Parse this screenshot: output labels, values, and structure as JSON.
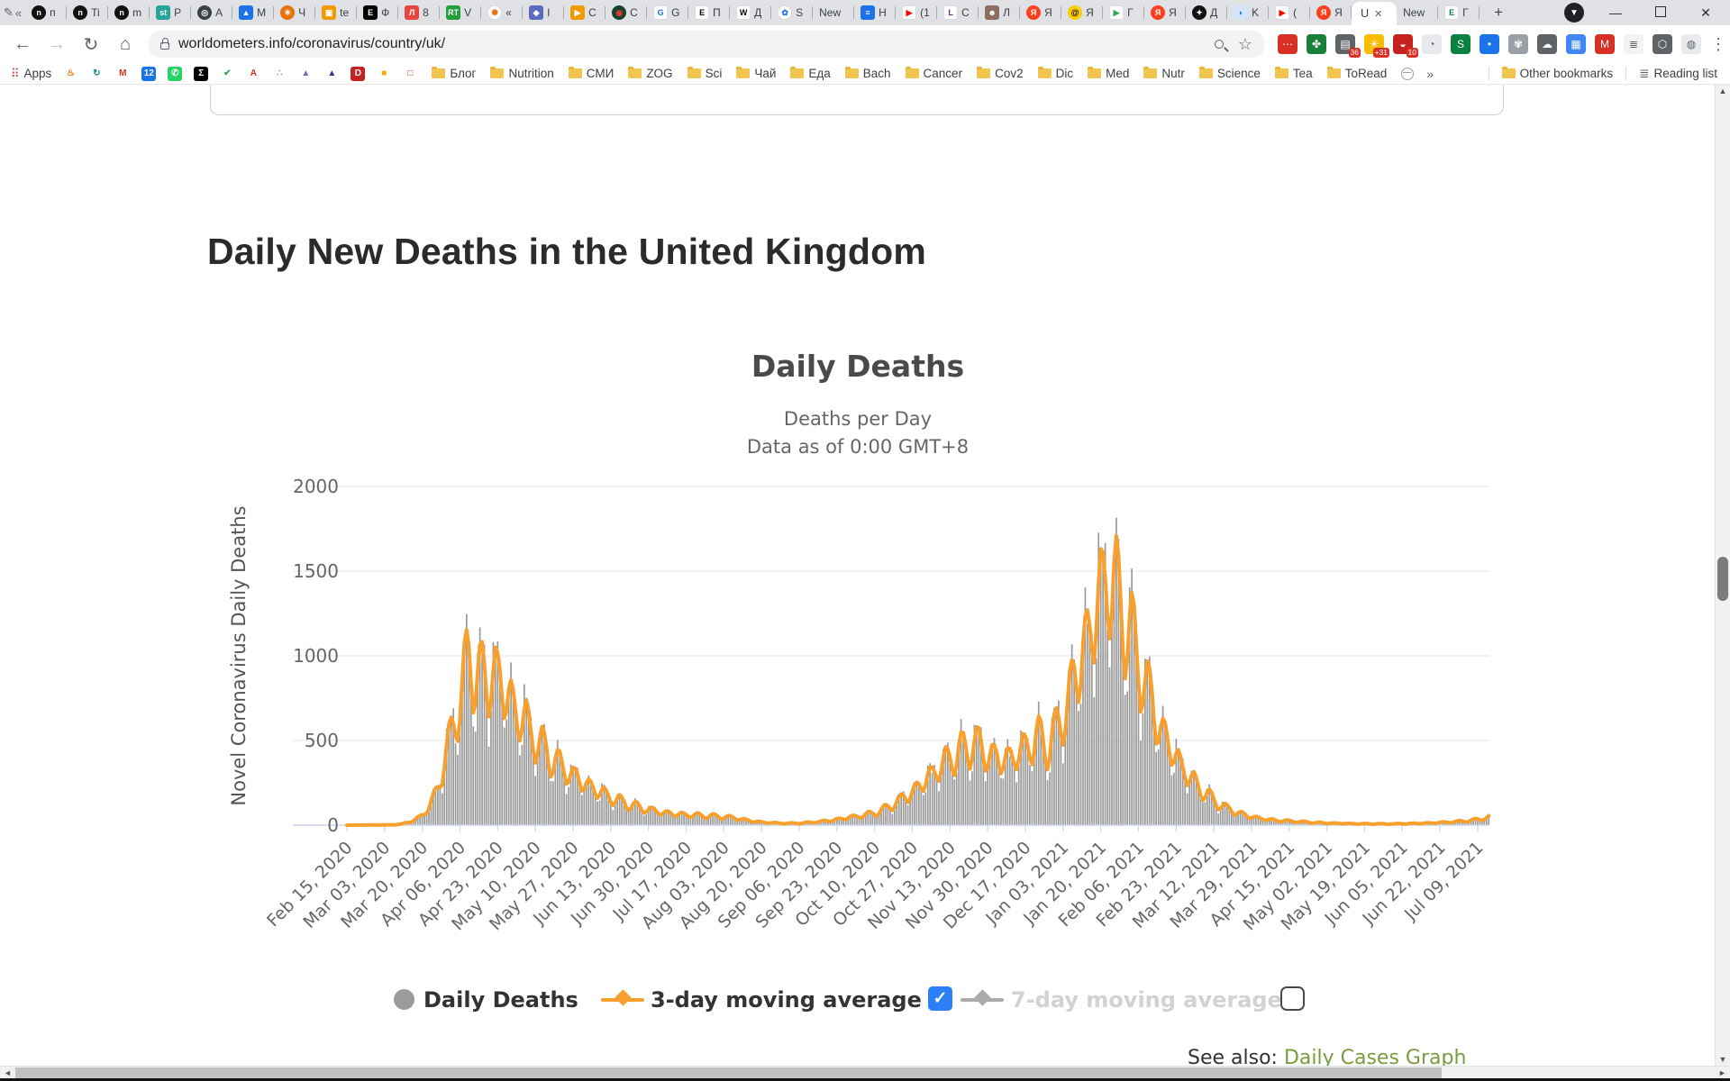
{
  "browser_chrome": {
    "pinned_prefix": {
      "pen_icon": "✎",
      "chevron": "«"
    },
    "tabs": [
      {
        "fav": [
          "c",
          "#111111",
          "#ffffff",
          "n"
        ],
        "letter": "п"
      },
      {
        "fav": [
          "c",
          "#111111",
          "#ffffff",
          "n"
        ],
        "letter": "Ti"
      },
      {
        "fav": [
          "c",
          "#111111",
          "#ffffff",
          "n"
        ],
        "letter": "m"
      },
      {
        "fav": [
          "s",
          "#26a69a",
          "#ffffff",
          "st"
        ],
        "letter": "P"
      },
      {
        "fav": [
          "c",
          "#3c4043",
          "#ffffff",
          "◎"
        ],
        "letter": "A"
      },
      {
        "fav": [
          "s",
          "#1a73e8",
          "#ffffff",
          "▲"
        ],
        "letter": "M"
      },
      {
        "fav": [
          "c",
          "#e8710a",
          "#ffffff",
          "✳"
        ],
        "letter": "Ч"
      },
      {
        "fav": [
          "s",
          "#f29900",
          "#ffffff",
          "▣"
        ],
        "letter": "te"
      },
      {
        "fav": [
          "s",
          "#000000",
          "#ffffff",
          "E"
        ],
        "letter": "Ф"
      },
      {
        "fav": [
          "s",
          "#e8453c",
          "#ffffff",
          "Л"
        ],
        "letter": "8"
      },
      {
        "fav": [
          "s",
          "#21a038",
          "#ffffff",
          "RT"
        ],
        "letter": "V"
      },
      {
        "fav": [
          "c",
          "#ffffff",
          "#e8710a",
          "✺"
        ],
        "letter": "«"
      },
      {
        "fav": [
          "s",
          "#5b6abf",
          "#ffffff",
          "◆"
        ],
        "letter": "I"
      },
      {
        "fav": [
          "s",
          "#f29900",
          "#ffffff",
          "▶"
        ],
        "letter": "C"
      },
      {
        "fav": [
          "c",
          "#14412e",
          "#e53935",
          "◉"
        ],
        "letter": "C"
      },
      {
        "fav": [
          "s",
          "#ffffff",
          "#1a73e8",
          "G"
        ],
        "letter": "G"
      },
      {
        "fav": [
          "s",
          "#ffffff",
          "#000000",
          "E"
        ],
        "letter": "П"
      },
      {
        "fav": [
          "s",
          "#ffffff",
          "#000000",
          "W"
        ],
        "letter": "Д"
      },
      {
        "fav": [
          "c",
          "#ffffff",
          "#1a73e8",
          "✿"
        ],
        "letter": "S"
      },
      {
        "fav": null,
        "letter": "New"
      },
      {
        "fav": [
          "s",
          "#1a73e8",
          "#ffffff",
          "≡"
        ],
        "letter": "H"
      },
      {
        "fav": [
          "s",
          "#ffffff",
          "#ff0000",
          "▶"
        ],
        "letter": "(1"
      },
      {
        "fav": [
          "s",
          "#ffffff",
          "#7b1fa2",
          "L"
        ],
        "letter": "C"
      },
      {
        "fav": [
          "s",
          "#8d6e63",
          "#ffffff",
          "☻"
        ],
        "letter": "Л"
      },
      {
        "fav": [
          "c",
          "#fc3f1d",
          "#ffffff",
          "Я"
        ],
        "letter": "Я"
      },
      {
        "fav": [
          "c",
          "#ffcc00",
          "#000000",
          "@"
        ],
        "letter": "Я"
      },
      {
        "fav": [
          "s",
          "#ffffff",
          "#34a853",
          "▶"
        ],
        "letter": "Г"
      },
      {
        "fav": [
          "c",
          "#fc3f1d",
          "#ffffff",
          "Я"
        ],
        "letter": "Я"
      },
      {
        "fav": [
          "c",
          "#111111",
          "#ffffff",
          "✦"
        ],
        "letter": "Д"
      },
      {
        "fav": [
          "s",
          "#d2e3fc",
          "#1967d2",
          "◗"
        ],
        "letter": "K"
      },
      {
        "fav": [
          "s",
          "#ffffff",
          "#ff0000",
          "▶"
        ],
        "letter": "("
      },
      {
        "fav": [
          "c",
          "#fc3f1d",
          "#ffffff",
          "Я"
        ],
        "letter": "Я"
      }
    ],
    "active_tab": {
      "label": "U",
      "close_glyph": "✕"
    },
    "trailing_tabs": [
      {
        "fav": null,
        "letter": "New"
      },
      {
        "fav": [
          "s",
          "#ffffff",
          "#0b8043",
          "E"
        ],
        "letter": "Г"
      }
    ],
    "new_tab_button": "+",
    "tab_search_glyph": "▼",
    "window_controls": {
      "minimize": "—",
      "close": "✕"
    },
    "toolbar": {
      "back": "←",
      "forward": "→",
      "reload": "↻",
      "home": "⌂",
      "url": "worldometers.info/coronavirus/country/uk/",
      "menu": "⋮"
    },
    "extensions": [
      {
        "g": "⋯",
        "bg": "#d93025",
        "fg": "#ffffff"
      },
      {
        "g": "✤",
        "bg": "#188038",
        "fg": "#ffffff"
      },
      {
        "g": "▤",
        "bg": "#5f6368",
        "fg": "#ffffff",
        "badge": "36"
      },
      {
        "g": "☀",
        "bg": "#fbbc04",
        "fg": "#ffffff",
        "badge": "+31"
      },
      {
        "g": "◒",
        "bg": "#c5221f",
        "fg": "#ffffff",
        "badge": "10"
      },
      {
        "g": "◔",
        "bg": "#e8eaed",
        "fg": "#5f6368"
      },
      {
        "g": "S",
        "bg": "#0b8043",
        "fg": "#ffffff"
      },
      {
        "g": "•",
        "bg": "#1a73e8",
        "fg": "#ffffff"
      },
      {
        "g": "✾",
        "bg": "#9aa0a6",
        "fg": "#ffffff"
      },
      {
        "g": "☁",
        "bg": "#5f6368",
        "fg": "#ffffff"
      },
      {
        "g": "▦",
        "bg": "#4285f4",
        "fg": "#ffffff"
      },
      {
        "g": "M",
        "bg": "#d93025",
        "fg": "#ffffff"
      },
      {
        "g": "≣",
        "bg": "#f1f3f4",
        "fg": "#5f6368"
      },
      {
        "g": "⬡",
        "bg": "#5f6368",
        "fg": "#ffffff"
      },
      {
        "g": "◍",
        "bg": "#e8eaed",
        "fg": "#5f6368"
      }
    ],
    "bookmarks": {
      "apps_label": "Apps",
      "apps_grid_glyph": "⠿",
      "site_icons": [
        {
          "g": "♨",
          "bg": "#ffffff",
          "fg": "#e8710a"
        },
        {
          "g": "↻",
          "bg": "#ffffff",
          "fg": "#00897b"
        },
        {
          "g": "M",
          "bg": "#ffffff",
          "fg": "#d93025"
        },
        {
          "g": "12",
          "bg": "#1a73e8",
          "fg": "#ffffff"
        },
        {
          "g": "✆",
          "bg": "#25d366",
          "fg": "#ffffff"
        },
        {
          "g": "Σ",
          "bg": "#000000",
          "fg": "#ffffff"
        },
        {
          "g": "✔",
          "bg": "#ffffff",
          "fg": "#34a853"
        },
        {
          "g": "A",
          "bg": "#ffffff",
          "fg": "#d93025"
        },
        {
          "g": "∴",
          "bg": "#ffffff",
          "fg": "#e06c9f"
        },
        {
          "g": "▲",
          "bg": "#ffffff",
          "fg": "#7b61c4"
        },
        {
          "g": "▲",
          "bg": "#ffffff",
          "fg": "#283593"
        },
        {
          "g": "D",
          "bg": "#c5221f",
          "fg": "#ffffff"
        },
        {
          "g": "■",
          "bg": "#ffffff",
          "fg": "#f9ab00"
        },
        {
          "g": "□",
          "bg": "#ffffff",
          "fg": "#d93025"
        }
      ],
      "folders": [
        "Блог",
        "Nutrition",
        "СМИ",
        "ZOG",
        "Sci",
        "Чай",
        "Еда",
        "Bach",
        "Cancer",
        "Cov2",
        "Dic",
        "Med",
        "Nutr",
        "Science",
        "Tea",
        "ToRead"
      ],
      "overflow_chevron": "»",
      "other_bookmarks": "Other bookmarks",
      "reading_list": "Reading list"
    }
  },
  "page": {
    "heading": "Daily New Deaths in the United Kingdom",
    "see_also_segments": [
      {
        "text": "See also: ",
        "color": "#333333"
      },
      {
        "text": "Daily Cases Graph",
        "color": "#7a9c3e"
      }
    ]
  },
  "chart_data": {
    "type": "bar",
    "title": "Daily Deaths",
    "subtitle_line1": "Deaths per Day",
    "subtitle_line2": "Data as of 0:00 GMT+8",
    "ylabel": "Novel Coronavirus Daily Deaths",
    "ylim": [
      0,
      2000
    ],
    "yticks": [
      0,
      500,
      1000,
      1500,
      2000
    ],
    "grid": true,
    "x_start_date": "Feb 15, 2020",
    "days": 516,
    "tick_interval_days": 17,
    "xticklabels": [
      "Feb 15, 2020",
      "Mar 03, 2020",
      "Mar 20, 2020",
      "Apr 06, 2020",
      "Apr 23, 2020",
      "May 10, 2020",
      "May 27, 2020",
      "Jun 13, 2020",
      "Jun 30, 2020",
      "Jul 17, 2020",
      "Aug 03, 2020",
      "Aug 20, 2020",
      "Sep 06, 2020",
      "Sep 23, 2020",
      "Oct 10, 2020",
      "Oct 27, 2020",
      "Nov 13, 2020",
      "Nov 30, 2020",
      "Dec 17, 2020",
      "Jan 03, 2021",
      "Jan 20, 2021",
      "Feb 06, 2021",
      "Feb 23, 2021",
      "Mar 12, 2021",
      "Mar 29, 2021",
      "Apr 15, 2021",
      "May 02, 2021",
      "May 19, 2021",
      "Jun 05, 2021",
      "Jun 22, 2021",
      "Jul 09, 2021"
    ],
    "series": [
      {
        "name": "Daily Deaths",
        "type": "column",
        "color": "#9a9a9a",
        "visible": true
      },
      {
        "name": "3-day moving average",
        "type": "line",
        "color": "#f7a02e",
        "visible": true
      },
      {
        "name": "7-day moving average",
        "type": "line",
        "color": "#b5b5b5",
        "visible": false
      }
    ],
    "avg_anchors": [
      [
        0,
        0
      ],
      [
        15,
        1
      ],
      [
        20,
        2
      ],
      [
        24,
        5
      ],
      [
        29,
        22
      ],
      [
        34,
        60
      ],
      [
        38,
        130
      ],
      [
        42,
        280
      ],
      [
        46,
        500
      ],
      [
        49,
        680
      ],
      [
        53,
        880
      ],
      [
        55,
        1080
      ],
      [
        58,
        900
      ],
      [
        61,
        950
      ],
      [
        64,
        830
      ],
      [
        66,
        990
      ],
      [
        69,
        900
      ],
      [
        73,
        800
      ],
      [
        76,
        710
      ],
      [
        80,
        650
      ],
      [
        85,
        530
      ],
      [
        90,
        450
      ],
      [
        95,
        380
      ],
      [
        100,
        325
      ],
      [
        107,
        265
      ],
      [
        113,
        215
      ],
      [
        120,
        165
      ],
      [
        127,
        128
      ],
      [
        134,
        102
      ],
      [
        141,
        82
      ],
      [
        148,
        70
      ],
      [
        155,
        63
      ],
      [
        162,
        58
      ],
      [
        169,
        53
      ],
      [
        176,
        43
      ],
      [
        183,
        24
      ],
      [
        190,
        15
      ],
      [
        199,
        11
      ],
      [
        206,
        13
      ],
      [
        213,
        21
      ],
      [
        220,
        33
      ],
      [
        227,
        49
      ],
      [
        234,
        63
      ],
      [
        241,
        87
      ],
      [
        248,
        142
      ],
      [
        255,
        205
      ],
      [
        262,
        295
      ],
      [
        267,
        355
      ],
      [
        272,
        415
      ],
      [
        277,
        455
      ],
      [
        281,
        485
      ],
      [
        284,
        505
      ],
      [
        288,
        445
      ],
      [
        292,
        425
      ],
      [
        296,
        405
      ],
      [
        300,
        425
      ],
      [
        304,
        455
      ],
      [
        308,
        505
      ],
      [
        312,
        545
      ],
      [
        316,
        465
      ],
      [
        320,
        585
      ],
      [
        324,
        705
      ],
      [
        328,
        905
      ],
      [
        333,
        1135
      ],
      [
        337,
        1265
      ],
      [
        340,
        1455
      ],
      [
        343,
        1575
      ],
      [
        346,
        1475
      ],
      [
        349,
        1355
      ],
      [
        353,
        1185
      ],
      [
        357,
        1005
      ],
      [
        361,
        845
      ],
      [
        365,
        665
      ],
      [
        369,
        545
      ],
      [
        373,
        445
      ],
      [
        377,
        355
      ],
      [
        381,
        285
      ],
      [
        385,
        225
      ],
      [
        389,
        175
      ],
      [
        393,
        132
      ],
      [
        397,
        102
      ],
      [
        401,
        82
      ],
      [
        405,
        63
      ],
      [
        409,
        50
      ],
      [
        414,
        37
      ],
      [
        420,
        29
      ],
      [
        425,
        25
      ],
      [
        430,
        21
      ],
      [
        435,
        17
      ],
      [
        441,
        13
      ],
      [
        448,
        11
      ],
      [
        455,
        9
      ],
      [
        462,
        8
      ],
      [
        472,
        8
      ],
      [
        479,
        10
      ],
      [
        486,
        12
      ],
      [
        493,
        16
      ],
      [
        500,
        21
      ],
      [
        507,
        29
      ],
      [
        511,
        37
      ],
      [
        515,
        49
      ]
    ],
    "weekday_factors": [
      0.82,
      0.6,
      0.72,
      1.12,
      1.2,
      1.13,
      1.06
    ],
    "colors": {
      "grid": "#e6e6e6",
      "axis_line": "#ccd6eb",
      "tick_label": "#666666",
      "title": "#4a4a4a",
      "subtitle": "#666666",
      "ylabel": "#555555"
    }
  },
  "legend": {
    "items": [
      {
        "label": "Daily Deaths",
        "marker": "circle",
        "color": "#9b9b9b",
        "checkbox": false
      },
      {
        "label": "3-day moving average",
        "marker": "line-diamond",
        "color": "#f7a02e",
        "checkbox": true,
        "checked": true
      },
      {
        "label": "7-day moving average",
        "marker": "line-diamond",
        "color": "#ababab",
        "checkbox": true,
        "checked": false
      }
    ],
    "check_glyph": "✓"
  }
}
